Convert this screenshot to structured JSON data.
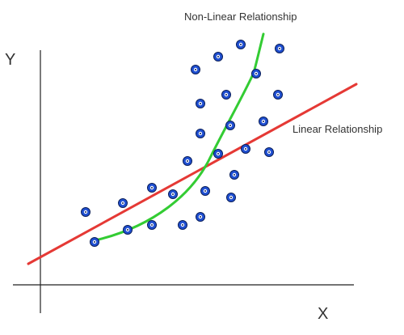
{
  "labels": {
    "y_axis": "Y",
    "x_axis": "X",
    "linear": "Linear Relationship",
    "nonlinear": "Non-Linear Relationship"
  },
  "colors": {
    "axis": "#222222",
    "linear_line": "#e53935",
    "nonlinear_curve": "#33cc33",
    "point_fill": "#1f4fd1",
    "point_stroke": "#0a1f5c"
  },
  "icons": {
    "point": "circle-dot-icon"
  }
}
